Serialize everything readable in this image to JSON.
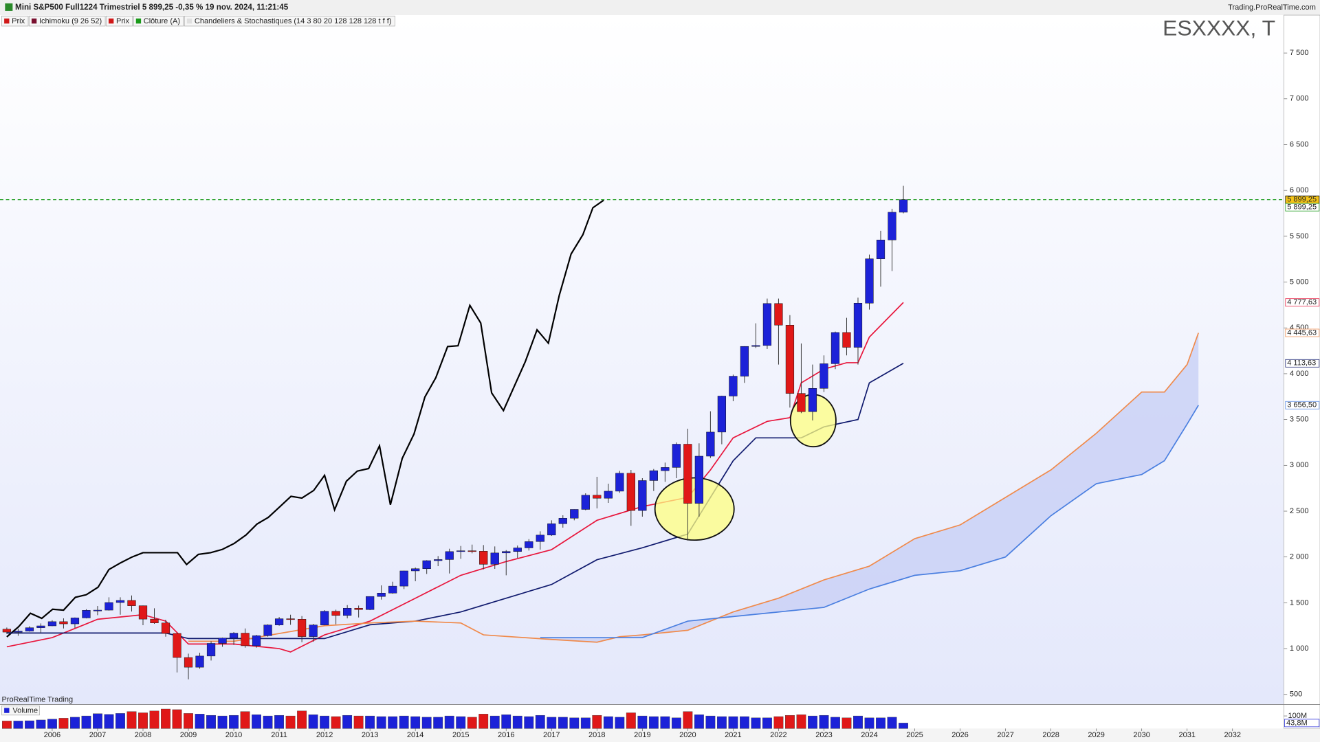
{
  "header": {
    "title": "Mini S&P500 Full1224 Trimestriel 5 899,25 -0,35 % 19 nov. 2024, 11:21:45",
    "site": "Trading.ProRealTime.com",
    "legend": [
      {
        "label": "Prix",
        "color": "#d01818"
      },
      {
        "label": "Ichimoku (9 26 52)",
        "color": "#7a1030"
      },
      {
        "label": "Prix",
        "color": "#d01818"
      },
      {
        "label": "Clôture (A)",
        "color": "#1a9a1a"
      },
      {
        "label": "Chandeliers & Stochastiques (14 3 80 20 128 128 128 t f f)",
        "color": "#e0e0e0"
      }
    ],
    "watermark": "ESXXXX, T",
    "brand": "ProRealTime Trading"
  },
  "chart_data": {
    "type": "candlestick",
    "up_color": "#1c22d8",
    "down_color": "#e01818",
    "x": [
      2005,
      2005.25,
      2005.5,
      2005.75,
      2006,
      2006.25,
      2006.5,
      2006.75,
      2007,
      2007.25,
      2007.5,
      2007.75,
      2008,
      2008.25,
      2008.5,
      2008.75,
      2009,
      2009.25,
      2009.5,
      2009.75,
      2010,
      2010.25,
      2010.5,
      2010.75,
      2011,
      2011.25,
      2011.5,
      2011.75,
      2012,
      2012.25,
      2012.5,
      2012.75,
      2013,
      2013.25,
      2013.5,
      2013.75,
      2014,
      2014.25,
      2014.5,
      2014.75,
      2015,
      2015.25,
      2015.5,
      2015.75,
      2016,
      2016.25,
      2016.5,
      2016.75,
      2017,
      2017.25,
      2017.5,
      2017.75,
      2018,
      2018.25,
      2018.5,
      2018.75,
      2019,
      2019.25,
      2019.5,
      2019.75,
      2020,
      2020.25,
      2020.5,
      2020.75,
      2021,
      2021.25,
      2021.5,
      2021.75,
      2022,
      2022.25,
      2022.5,
      2022.75,
      2023,
      2023.25,
      2023.5,
      2023.75,
      2024,
      2024.25,
      2024.5,
      2024.75
    ],
    "open": [
      1212,
      1180,
      1191,
      1228,
      1248,
      1294,
      1270,
      1335,
      1418,
      1420,
      1503,
      1526,
      1468,
      1322,
      1280,
      1166,
      903,
      797,
      919,
      1057,
      1115,
      1169,
      1031,
      1141,
      1258,
      1326,
      1321,
      1131,
      1258,
      1408,
      1362,
      1441,
      1426,
      1569,
      1606,
      1682,
      1848,
      1872,
      1960,
      1972,
      2059,
      2068,
      2063,
      1920,
      2044,
      2060,
      2099,
      2168,
      2239,
      2363,
      2423,
      2519,
      2674,
      2641,
      2718,
      2914,
      2507,
      2834,
      2942,
      2977,
      3231,
      2585,
      3100,
      3363,
      3756,
      3973,
      4298,
      4308,
      4766,
      4530,
      3785,
      3586,
      3840,
      4109,
      4450,
      4288,
      4770,
      5254,
      5460,
      5762
    ],
    "high": [
      1230,
      1215,
      1245,
      1275,
      1310,
      1330,
      1340,
      1430,
      1465,
      1560,
      1560,
      1580,
      1470,
      1440,
      1315,
      1170,
      945,
      955,
      1080,
      1120,
      1180,
      1220,
      1150,
      1265,
      1345,
      1370,
      1355,
      1270,
      1420,
      1425,
      1475,
      1470,
      1570,
      1690,
      1730,
      1850,
      1885,
      1965,
      2010,
      2090,
      2120,
      2135,
      2130,
      2115,
      2075,
      2125,
      2195,
      2280,
      2400,
      2455,
      2520,
      2695,
      2875,
      2800,
      2940,
      2950,
      2860,
      2960,
      3030,
      3250,
      3400,
      3240,
      3590,
      3760,
      3990,
      4300,
      4550,
      4820,
      4820,
      4640,
      4330,
      4100,
      4200,
      4460,
      4610,
      4830,
      5300,
      5560,
      5800,
      6050
    ],
    "low": [
      1160,
      1140,
      1185,
      1170,
      1245,
      1220,
      1225,
      1330,
      1365,
      1415,
      1370,
      1405,
      1255,
      1270,
      1130,
      740,
      665,
      780,
      870,
      1020,
      1040,
      1010,
      1010,
      1130,
      1250,
      1260,
      1070,
      1075,
      1255,
      1265,
      1330,
      1340,
      1420,
      1535,
      1600,
      1650,
      1735,
      1815,
      1900,
      1820,
      1980,
      2040,
      1865,
      1870,
      1800,
      1990,
      2070,
      2080,
      2230,
      2320,
      2400,
      2510,
      2530,
      2590,
      2700,
      2340,
      2440,
      2720,
      2820,
      2860,
      2180,
      2440,
      3080,
      3230,
      3700,
      3900,
      4280,
      4270,
      4100,
      3630,
      3570,
      3490,
      3800,
      4050,
      4200,
      4100,
      4700,
      4950,
      5120,
      5750
    ],
    "close": [
      1180,
      1191,
      1228,
      1248,
      1294,
      1270,
      1335,
      1418,
      1420,
      1503,
      1526,
      1468,
      1322,
      1280,
      1166,
      903,
      797,
      919,
      1057,
      1115,
      1169,
      1031,
      1141,
      1258,
      1326,
      1321,
      1131,
      1258,
      1408,
      1362,
      1441,
      1426,
      1569,
      1606,
      1682,
      1848,
      1872,
      1960,
      1972,
      2059,
      2068,
      2063,
      1920,
      2044,
      2060,
      2099,
      2168,
      2239,
      2363,
      2423,
      2519,
      2674,
      2641,
      2718,
      2914,
      2507,
      2834,
      2942,
      2977,
      3231,
      2585,
      3100,
      3363,
      3756,
      3973,
      4298,
      4308,
      4766,
      4530,
      3785,
      3586,
      3840,
      4109,
      4450,
      4288,
      4770,
      5254,
      5460,
      5762,
      5899.25
    ],
    "lines": [
      {
        "color": "#000000",
        "x": [
          2005,
          2005.26,
          2005.52,
          2005.77,
          2006.01,
          2006.25,
          2006.51,
          2006.75,
          2007.01,
          2007.25,
          2007.51,
          2007.76,
          2008,
          2008.26,
          2008.52,
          2008.76,
          2008.96,
          2009.22,
          2009.49,
          2009.75,
          2010.01,
          2010.27,
          2010.51,
          2010.76,
          2011,
          2011.26,
          2011.5,
          2011.76,
          2012,
          2012.22,
          2012.48,
          2012.72,
          2012.97,
          2013.21,
          2013.45,
          2013.71,
          2013.97,
          2014.21,
          2014.45,
          2014.71,
          2014.94,
          2015.2,
          2015.44,
          2015.68,
          2015.94,
          2016.18,
          2016.42,
          2016.68,
          2016.93,
          2017.17,
          2017.43,
          2017.69,
          2017.91,
          2018.15
        ],
        "values": [
          1128,
          1239,
          1386,
          1330,
          1430,
          1420,
          1560,
          1588,
          1670,
          1863,
          1937,
          2000,
          2047,
          2047,
          2047,
          2047,
          1918,
          2028,
          2047,
          2083,
          2148,
          2240,
          2359,
          2432,
          2542,
          2662,
          2643,
          2726,
          2891,
          2515,
          2827,
          2937,
          2965,
          3213,
          2570,
          3075,
          3342,
          3746,
          3956,
          4296,
          4305,
          4746,
          4553,
          3791,
          3598,
          3864,
          4130,
          4479,
          4333,
          4856,
          5306,
          5517,
          5811,
          5894
        ]
      },
      {
        "color": "#e8163c",
        "x": [
          2005,
          2006,
          2007,
          2008,
          2008.5,
          2009,
          2010,
          2011,
          2011.25,
          2012,
          2013,
          2014,
          2015,
          2016,
          2017,
          2018,
          2019,
          2020,
          2020.5,
          2021,
          2021.75,
          2022.25,
          2022.5,
          2023,
          2023.5,
          2023.75,
          2024,
          2024.75
        ],
        "values": [
          1020,
          1120,
          1320,
          1370,
          1300,
          1050,
          1050,
          1000,
          963,
          1150,
          1300,
          1550,
          1800,
          1950,
          2080,
          2400,
          2550,
          2650,
          2950,
          3300,
          3480,
          3520,
          3900,
          4050,
          4120,
          4120,
          4400,
          4777.63
        ]
      },
      {
        "color": "#101a6e",
        "x": [
          2005,
          2007,
          2008.5,
          2009,
          2012,
          2013,
          2014,
          2015,
          2016,
          2017,
          2018,
          2019,
          2020,
          2020.5,
          2021,
          2021.5,
          2022.5,
          2023,
          2023.75,
          2024,
          2024.75
        ],
        "values": [
          1170,
          1170,
          1170,
          1110,
          1110,
          1260,
          1300,
          1400,
          1550,
          1700,
          1970,
          2100,
          2250,
          2650,
          3050,
          3300,
          3300,
          3420,
          3500,
          3900,
          4113.63
        ]
      },
      {
        "color": "#f08a4b",
        "x": [
          2009,
          2010,
          2012,
          2013,
          2014,
          2015,
          2015.5,
          2017,
          2018,
          2018.5,
          2019,
          2020,
          2021,
          2022,
          2023,
          2024,
          2025,
          2026,
          2027,
          2028,
          2029,
          2030,
          2030.5,
          2031,
          2031.25
        ],
        "values": [
          1080,
          1080,
          1250,
          1280,
          1300,
          1280,
          1150,
          1100,
          1070,
          1130,
          1150,
          1200,
          1400,
          1550,
          1750,
          1900,
          2200,
          2350,
          2650,
          2950,
          3350,
          3800,
          3800,
          4100,
          4445.63
        ]
      },
      {
        "color": "#4a7fe0",
        "x": [
          2016.75,
          2019,
          2020,
          2021,
          2022,
          2023,
          2024,
          2025,
          2026,
          2027,
          2028,
          2029,
          2030,
          2030.5,
          2031,
          2031.25
        ],
        "values": [
          1120,
          1120,
          1300,
          1350,
          1400,
          1450,
          1650,
          1800,
          1850,
          2000,
          2450,
          2800,
          2900,
          3050,
          3450,
          3656.5
        ]
      }
    ],
    "cloud_color": "#c8cff5",
    "last_price": 5899.25,
    "last_price_color": "#1a9a1a",
    "price_tags": [
      {
        "value": 5899.25,
        "label": "5 899,25",
        "color": "#000000",
        "background": "#f5c518"
      },
      {
        "value": 5899.25,
        "label": "5 899,25",
        "color": "#1a9a1a",
        "background": "#ffffff"
      },
      {
        "value": 4777.63,
        "label": "4 777,63",
        "color": "#e8163c",
        "background": "#ffffff"
      },
      {
        "value": 4445.63,
        "label": "4 445,63",
        "color": "#f08a4b",
        "background": "#ffffff"
      },
      {
        "value": 4113.63,
        "label": "4 113,63",
        "color": "#101a6e",
        "background": "#ffffff"
      },
      {
        "value": 3656.5,
        "label": "3 656,50",
        "color": "#4a7fe0",
        "background": "#ffffff"
      }
    ],
    "xlim": [
      2004.85,
      2033.13
    ],
    "xticks": [
      2006,
      2007,
      2008,
      2009,
      2010,
      2011,
      2012,
      2013,
      2014,
      2015,
      2016,
      2017,
      2018,
      2019,
      2020,
      2021,
      2022,
      2023,
      2024,
      2025,
      2026,
      2027,
      2028,
      2029,
      2030,
      2031,
      2032
    ],
    "ylim": [
      394,
      7913
    ],
    "yticks": [
      500,
      {
        "value": 1000,
        "label": "1 000"
      },
      {
        "value": 1500,
        "label": "1 500"
      },
      {
        "value": 2000,
        "label": "2 000"
      },
      {
        "value": 2500,
        "label": "2 500"
      },
      {
        "value": 3000,
        "label": "3 000"
      },
      {
        "value": 3500,
        "label": "3 500"
      },
      {
        "value": 4000,
        "label": "4 000"
      },
      {
        "value": 4500,
        "label": "4 500"
      },
      {
        "value": 5000,
        "label": "5 000"
      },
      {
        "value": 5500,
        "label": "5 500"
      },
      {
        "value": 6000,
        "label": "6 000"
      },
      {
        "value": 6500,
        "label": "6 500"
      },
      {
        "value": 7000,
        "label": "7 000"
      },
      {
        "value": 7500,
        "label": "7 500"
      }
    ],
    "volume": {
      "label": "Volume",
      "ylim": [
        0,
        187
      ],
      "yticks": [
        {
          "value": 100,
          "label": "100M"
        }
      ],
      "values": [
        60,
        60,
        62,
        68,
        75,
        82,
        90,
        100,
        118,
        112,
        120,
        135,
        125,
        140,
        155,
        150,
        120,
        115,
        105,
        100,
        105,
        135,
        110,
        100,
        105,
        100,
        140,
        110,
        100,
        95,
        105,
        100,
        100,
        95,
        95,
        100,
        95,
        90,
        90,
        100,
        95,
        90,
        115,
        100,
        110,
        100,
        95,
        105,
        90,
        90,
        85,
        85,
        105,
        95,
        90,
        125,
        100,
        95,
        95,
        85,
        135,
        110,
        100,
        95,
        95,
        95,
        85,
        85,
        95,
        105,
        110,
        100,
        105,
        90,
        85,
        100,
        85,
        85,
        90,
        43.8
      ],
      "last": {
        "value": 43.8,
        "label": "43,8M"
      }
    }
  }
}
